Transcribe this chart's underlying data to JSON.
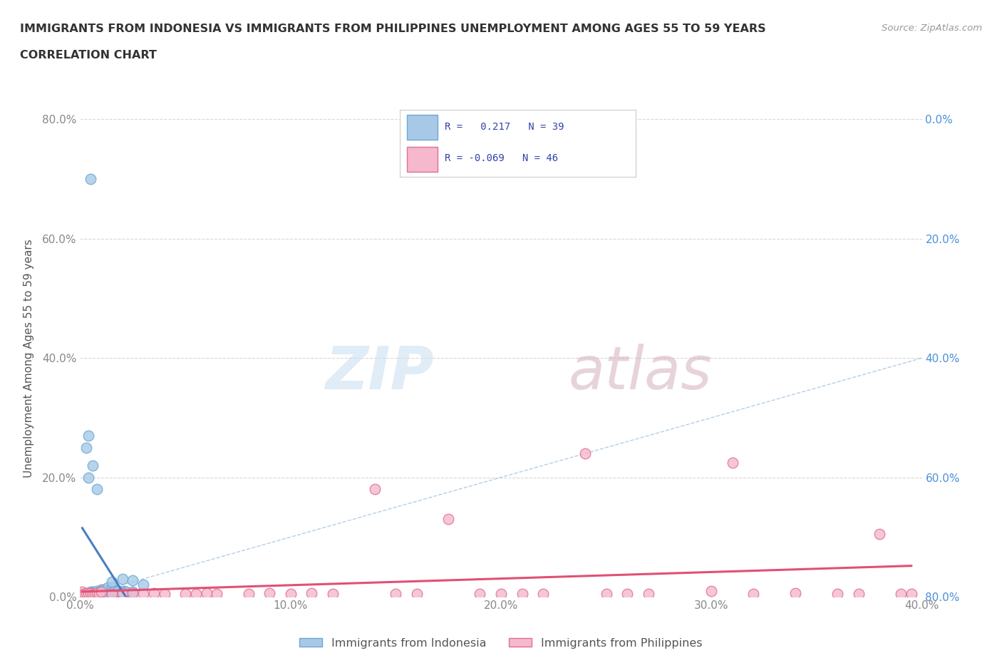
{
  "title_line1": "IMMIGRANTS FROM INDONESIA VS IMMIGRANTS FROM PHILIPPINES UNEMPLOYMENT AMONG AGES 55 TO 59 YEARS",
  "title_line2": "CORRELATION CHART",
  "source_text": "Source: ZipAtlas.com",
  "ylabel": "Unemployment Among Ages 55 to 59 years",
  "xlim": [
    0.0,
    0.4
  ],
  "ylim": [
    0.0,
    0.8
  ],
  "xticks": [
    0.0,
    0.1,
    0.2,
    0.3,
    0.4
  ],
  "yticks": [
    0.0,
    0.2,
    0.4,
    0.6,
    0.8
  ],
  "xtick_labels": [
    "0.0%",
    "10.0%",
    "20.0%",
    "30.0%",
    "40.0%"
  ],
  "ytick_labels_left": [
    "0.0%",
    "20.0%",
    "40.0%",
    "60.0%",
    "80.0%"
  ],
  "ytick_labels_right": [
    "80.0%",
    "60.0%",
    "40.0%",
    "20.0%",
    "0.0%"
  ],
  "legend_label1": "Immigrants from Indonesia",
  "legend_label2": "Immigrants from Philippines",
  "R1": 0.217,
  "N1": 39,
  "R2": -0.069,
  "N2": 46,
  "color_indonesia": "#a8c8e8",
  "color_indonesia_edge": "#6aaad4",
  "color_indonesia_line": "#4a7fc0",
  "color_philippines": "#f5b8cc",
  "color_philippines_edge": "#e07090",
  "color_philippines_line": "#e05075",
  "color_diag_line": "#aac8e8",
  "watermark_zip": "ZIP",
  "watermark_atlas": "atlas",
  "background_color": "#ffffff",
  "grid_color": "#d8d8d8",
  "title_color": "#333333",
  "axis_label_color": "#555555",
  "tick_color_left": "#888888",
  "tick_color_right": "#4a90d9",
  "right_axis_color": "#4a90d9",
  "indonesia_scatter_x": [
    0.001,
    0.002,
    0.003,
    0.004,
    0.005,
    0.006,
    0.007,
    0.008,
    0.01,
    0.01,
    0.011,
    0.012,
    0.013,
    0.015,
    0.015,
    0.016,
    0.018,
    0.02,
    0.021,
    0.022,
    0.025,
    0.003,
    0.004,
    0.005,
    0.006,
    0.007,
    0.008,
    0.01,
    0.012,
    0.015,
    0.018,
    0.02,
    0.004,
    0.006,
    0.008,
    0.015,
    0.02,
    0.025,
    0.03
  ],
  "indonesia_scatter_y": [
    0.005,
    0.005,
    0.005,
    0.005,
    0.008,
    0.008,
    0.008,
    0.01,
    0.01,
    0.012,
    0.012,
    0.01,
    0.015,
    0.015,
    0.008,
    0.01,
    0.01,
    0.008,
    0.01,
    0.008,
    0.008,
    0.25,
    0.27,
    0.7,
    0.005,
    0.005,
    0.005,
    0.005,
    0.003,
    0.003,
    0.003,
    0.003,
    0.2,
    0.22,
    0.18,
    0.025,
    0.03,
    0.028,
    0.02
  ],
  "philippines_scatter_x": [
    0.001,
    0.002,
    0.003,
    0.004,
    0.005,
    0.006,
    0.007,
    0.008,
    0.009,
    0.01,
    0.015,
    0.02,
    0.025,
    0.03,
    0.035,
    0.04,
    0.05,
    0.055,
    0.06,
    0.065,
    0.08,
    0.09,
    0.1,
    0.11,
    0.12,
    0.14,
    0.15,
    0.16,
    0.175,
    0.19,
    0.2,
    0.21,
    0.22,
    0.24,
    0.25,
    0.26,
    0.27,
    0.3,
    0.31,
    0.32,
    0.34,
    0.36,
    0.37,
    0.38,
    0.39,
    0.395
  ],
  "philippines_scatter_y": [
    0.008,
    0.005,
    0.006,
    0.006,
    0.006,
    0.005,
    0.005,
    0.006,
    0.005,
    0.008,
    0.005,
    0.006,
    0.006,
    0.005,
    0.006,
    0.005,
    0.005,
    0.005,
    0.006,
    0.005,
    0.005,
    0.006,
    0.005,
    0.006,
    0.005,
    0.18,
    0.005,
    0.005,
    0.13,
    0.005,
    0.005,
    0.005,
    0.005,
    0.24,
    0.005,
    0.005,
    0.005,
    0.01,
    0.225,
    0.005,
    0.006,
    0.005,
    0.005,
    0.105,
    0.005,
    0.005
  ]
}
